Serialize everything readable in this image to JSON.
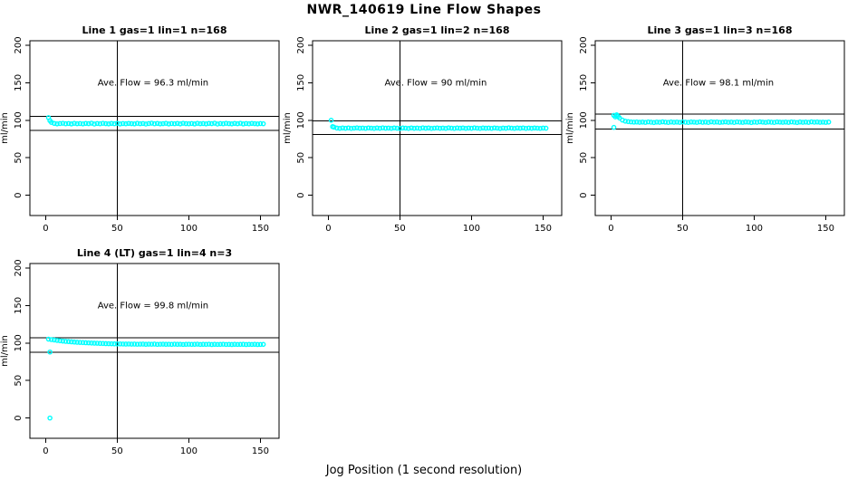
{
  "figure": {
    "title": "NWR_140619  Line Flow Shapes",
    "xlabel": "Jog Position (1 second resolution)",
    "background": "#ffffff",
    "axis_color": "#000000",
    "point_color": "#00ffff"
  },
  "chart_data": [
    {
      "type": "scatter",
      "title": "Line 1 gas=1 lin=1 n=168",
      "annotation": "Ave. Flow =  96.3  ml/min",
      "ylabel": "ml/min",
      "xlabel": "",
      "xticks": [
        0,
        50,
        100,
        150
      ],
      "yticks": [
        0,
        50,
        100,
        150,
        200
      ],
      "xlim": [
        -11,
        163
      ],
      "ylim": [
        -27,
        206
      ],
      "vline_x": 50,
      "hlines": [
        105.4,
        86.2
      ],
      "annotation_pos": {
        "x": 75,
        "y": 150
      },
      "x": {
        "start": 2,
        "step": 2
      },
      "y": [
        103.5,
        97.2,
        95.8,
        95.2,
        95.6,
        96.0,
        95.3,
        95.7,
        95.1,
        95.9,
        95.4,
        95.6,
        95.2,
        95.8,
        95.5,
        96.1,
        95.0,
        95.7,
        95.3,
        95.9,
        95.5,
        95.2,
        95.8,
        95.4,
        96.0,
        95.1,
        95.6,
        95.3,
        95.8,
        95.5,
        95.2,
        95.9,
        95.4,
        95.7,
        95.0,
        95.6,
        96.1,
        95.3,
        95.8,
        95.2,
        95.5,
        95.9,
        95.1,
        95.6,
        95.4,
        95.8,
        95.2,
        96.0,
        95.5,
        95.3,
        95.7,
        95.1,
        95.9,
        95.4,
        95.6,
        95.2,
        95.8,
        95.5,
        96.1,
        95.0,
        95.6,
        95.3,
        95.9,
        95.5,
        95.2,
        95.8,
        95.4,
        96.0,
        95.1,
        95.7,
        95.3,
        95.8,
        95.5,
        95.2,
        95.6,
        95.4
      ],
      "extra_points": [
        [
          3,
          99.5
        ]
      ]
    },
    {
      "type": "scatter",
      "title": "Line 2 gas=1 lin=2 n=168",
      "annotation": "Ave. Flow =  90  ml/min",
      "ylabel": "ml/min",
      "xlabel": "",
      "xticks": [
        0,
        50,
        100,
        150
      ],
      "yticks": [
        0,
        50,
        100,
        150,
        200
      ],
      "xlim": [
        -11,
        163
      ],
      "ylim": [
        -27,
        206
      ],
      "vline_x": 50,
      "hlines": [
        99.0,
        81.0
      ],
      "annotation_pos": {
        "x": 75,
        "y": 150
      },
      "x": {
        "start": 2,
        "step": 2
      },
      "y": [
        100.0,
        90.8,
        89.6,
        89.2,
        89.7,
        89.3,
        89.8,
        89.1,
        89.5,
        89.9,
        89.4,
        89.6,
        89.2,
        89.8,
        89.5,
        89.1,
        89.7,
        89.3,
        89.9,
        89.4,
        89.6,
        89.2,
        89.8,
        89.4,
        89.0,
        89.7,
        89.5,
        89.1,
        89.8,
        89.3,
        89.6,
        89.2,
        89.9,
        89.4,
        89.7,
        89.1,
        89.5,
        89.8,
        89.3,
        89.6,
        89.2,
        89.9,
        89.5,
        89.1,
        89.7,
        89.4,
        89.8,
        89.2,
        89.6,
        89.3,
        89.9,
        89.5,
        89.1,
        89.7,
        89.4,
        89.6,
        89.2,
        89.8,
        89.5,
        89.0,
        89.6,
        89.3,
        89.9,
        89.5,
        89.2,
        89.7,
        89.4,
        89.8,
        89.1,
        89.6,
        89.3,
        89.7,
        89.5,
        89.2,
        89.6,
        89.4
      ],
      "extra_points": [
        [
          3,
          91.5
        ]
      ]
    },
    {
      "type": "scatter",
      "title": "Line 3 gas=1 lin=3 n=168",
      "annotation": "Ave. Flow =  98.1  ml/min",
      "ylabel": "ml/min",
      "xlabel": "",
      "xticks": [
        0,
        50,
        100,
        150
      ],
      "yticks": [
        0,
        50,
        100,
        150,
        200
      ],
      "xlim": [
        -11,
        163
      ],
      "ylim": [
        -27,
        206
      ],
      "vline_x": 50,
      "hlines": [
        108.0,
        88.3
      ],
      "annotation_pos": {
        "x": 75,
        "y": 150
      },
      "x": {
        "start": 2,
        "step": 2
      },
      "y": [
        106.5,
        107.2,
        103.0,
        100.2,
        98.8,
        98.2,
        97.8,
        97.5,
        97.7,
        97.3,
        97.6,
        97.2,
        97.8,
        97.4,
        97.0,
        97.6,
        97.3,
        97.9,
        97.5,
        97.1,
        97.7,
        97.3,
        97.6,
        97.2,
        97.8,
        97.4,
        97.1,
        97.7,
        97.5,
        97.2,
        97.8,
        97.3,
        97.6,
        97.1,
        97.9,
        97.4,
        97.7,
        97.2,
        97.5,
        97.8,
        97.3,
        97.6,
        97.1,
        97.8,
        97.4,
        97.2,
        97.7,
        97.5,
        97.0,
        97.6,
        97.3,
        97.9,
        97.5,
        97.2,
        97.7,
        97.4,
        97.1,
        97.8,
        97.5,
        97.3,
        97.6,
        97.2,
        97.8,
        97.4,
        97.0,
        97.7,
        97.3,
        97.6,
        97.2,
        97.9,
        97.4,
        97.7,
        97.3,
        97.5,
        97.2,
        97.6
      ],
      "extra_points": [
        [
          2,
          90.5
        ],
        [
          3,
          104.5
        ],
        [
          4,
          106.0
        ],
        [
          5,
          105.0
        ]
      ]
    },
    {
      "type": "scatter",
      "title": "Line 4 (LT) gas=1 lin=4 n=3",
      "annotation": "Ave. Flow =  99.8  ml/min",
      "ylabel": "ml/min",
      "xlabel": "",
      "xticks": [
        0,
        50,
        100,
        150
      ],
      "yticks": [
        0,
        50,
        100,
        150,
        200
      ],
      "xlim": [
        -11,
        163
      ],
      "ylim": [
        -27,
        206
      ],
      "vline_x": 50,
      "hlines": [
        107.0,
        87.6
      ],
      "annotation_pos": {
        "x": 75,
        "y": 150
      },
      "x": {
        "start": 2,
        "step": 2
      },
      "y": [
        105.2,
        104.6,
        104.1,
        103.5,
        103.0,
        102.6,
        102.2,
        101.9,
        101.6,
        101.3,
        101.0,
        100.8,
        100.6,
        100.4,
        100.2,
        100.0,
        99.8,
        99.7,
        99.5,
        99.4,
        99.2,
        99.1,
        99.0,
        98.9,
        98.8,
        98.8,
        98.7,
        98.6,
        98.7,
        98.5,
        98.6,
        98.4,
        98.5,
        98.6,
        98.3,
        98.5,
        98.4,
        98.6,
        98.2,
        98.4,
        98.5,
        98.3,
        98.4,
        98.2,
        98.5,
        98.3,
        98.4,
        98.1,
        98.3,
        98.4,
        98.2,
        98.3,
        98.5,
        98.1,
        98.3,
        98.2,
        98.4,
        98.0,
        98.3,
        98.1,
        98.2,
        98.4,
        98.1,
        98.2,
        98.0,
        98.3,
        98.1,
        98.2,
        98.3,
        98.0,
        98.2,
        98.1,
        98.3,
        98.0,
        98.1,
        98.2
      ],
      "extra_points": [
        [
          3,
          88.0
        ],
        [
          3,
          0.0
        ]
      ]
    }
  ]
}
